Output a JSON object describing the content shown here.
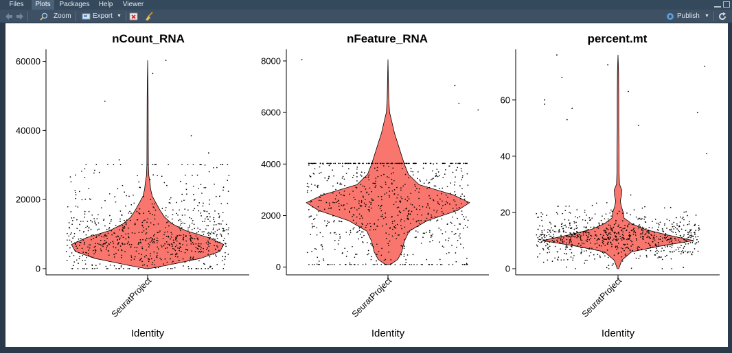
{
  "tabs": [
    {
      "label": "Files",
      "active": false
    },
    {
      "label": "Plots",
      "active": true
    },
    {
      "label": "Packages",
      "active": false
    },
    {
      "label": "Help",
      "active": false
    },
    {
      "label": "Viewer",
      "active": false
    }
  ],
  "toolbar": {
    "zoom_label": "Zoom",
    "export_label": "Export",
    "publish_label": "Publish",
    "icons": [
      "back-arrow-icon",
      "forward-arrow-icon",
      "magnifier-icon",
      "export-icon",
      "remove-plot-icon",
      "broom-icon",
      "publish-icon",
      "refresh-icon"
    ]
  },
  "colors": {
    "violin_fill": "#F8766D",
    "accent": "#4a6178"
  },
  "chart_data": [
    {
      "type": "violin",
      "title": "nCount_RNA",
      "xlabel": "Identity",
      "categories": [
        "SeuratProject"
      ],
      "ylim": [
        -1800,
        63500
      ],
      "yticks": [
        0,
        20000,
        40000,
        60000
      ],
      "tick_labels": [
        "0",
        "20000",
        "40000",
        "60000"
      ],
      "max": 60300,
      "density": [
        [
          0,
          0.02
        ],
        [
          1000,
          0.26
        ],
        [
          3000,
          0.7
        ],
        [
          5000,
          0.95
        ],
        [
          7000,
          1.0
        ],
        [
          9000,
          0.8
        ],
        [
          11000,
          0.5
        ],
        [
          13000,
          0.32
        ],
        [
          15000,
          0.22
        ],
        [
          17000,
          0.16
        ],
        [
          19000,
          0.11
        ],
        [
          21000,
          0.06
        ],
        [
          23000,
          0.04
        ],
        [
          25000,
          0.03
        ],
        [
          27000,
          0.015
        ],
        [
          30000,
          0.01
        ],
        [
          40000,
          0.008
        ],
        [
          50000,
          0.006
        ],
        [
          60300,
          0
        ]
      ],
      "points": {
        "count": 800,
        "mode": 7000,
        "spread": 4500,
        "tail": 14000,
        "outliers": [
          [
            -0.42,
            48500
          ],
          [
            -0.28,
            31500
          ],
          [
            0.43,
            38500
          ],
          [
            0.6,
            33500
          ],
          [
            0.8,
            27000
          ],
          [
            0.18,
            60300
          ],
          [
            0.05,
            56500
          ]
        ]
      }
    },
    {
      "type": "violin",
      "title": "nFeature_RNA",
      "xlabel": "Identity",
      "categories": [
        "SeuratProject"
      ],
      "ylim": [
        -300,
        8450
      ],
      "yticks": [
        0,
        2000,
        4000,
        6000,
        8000
      ],
      "tick_labels": [
        "0",
        "2000",
        "4000",
        "6000",
        "8000"
      ],
      "max": 8050,
      "density": [
        [
          100,
          0.03
        ],
        [
          300,
          0.12
        ],
        [
          600,
          0.17
        ],
        [
          1000,
          0.2
        ],
        [
          1400,
          0.26
        ],
        [
          1800,
          0.48
        ],
        [
          2200,
          0.85
        ],
        [
          2500,
          1.0
        ],
        [
          2800,
          0.8
        ],
        [
          3200,
          0.38
        ],
        [
          3600,
          0.25
        ],
        [
          4000,
          0.2
        ],
        [
          4400,
          0.16
        ],
        [
          4800,
          0.12
        ],
        [
          5200,
          0.08
        ],
        [
          5600,
          0.05
        ],
        [
          6000,
          0.02
        ],
        [
          6500,
          0.01
        ],
        [
          7000,
          0.007
        ],
        [
          8050,
          0
        ]
      ],
      "points": {
        "count": 800,
        "mode": 2500,
        "spread": 1600,
        "tail": 0,
        "outliers": [
          [
            -0.85,
            8050
          ],
          [
            0.66,
            7050
          ],
          [
            0.7,
            6350
          ],
          [
            0.89,
            6100
          ]
        ]
      }
    },
    {
      "type": "violin",
      "title": "percent.mt",
      "xlabel": "Identity",
      "categories": [
        "SeuratProject"
      ],
      "ylim": [
        -2.2,
        78
      ],
      "yticks": [
        0,
        20,
        40,
        60
      ],
      "tick_labels": [
        "0",
        "20",
        "40",
        "60"
      ],
      "max": 76,
      "density": [
        [
          0,
          0.01
        ],
        [
          3,
          0.05
        ],
        [
          6,
          0.18
        ],
        [
          8,
          0.55
        ],
        [
          10,
          1.0
        ],
        [
          12,
          0.65
        ],
        [
          14,
          0.35
        ],
        [
          16,
          0.18
        ],
        [
          18,
          0.08
        ],
        [
          20,
          0.07
        ],
        [
          22,
          0.045
        ],
        [
          24,
          0.03
        ],
        [
          26,
          0.045
        ],
        [
          28,
          0.05
        ],
        [
          30,
          0.02
        ],
        [
          34,
          0.015
        ],
        [
          40,
          0.014
        ],
        [
          50,
          0.01
        ],
        [
          60,
          0.01
        ],
        [
          70,
          0.007
        ],
        [
          76,
          0
        ]
      ],
      "points": {
        "count": 800,
        "mode": 10,
        "spread": 4,
        "tail": 6,
        "outliers": [
          [
            -0.6,
            76
          ],
          [
            -0.55,
            68
          ],
          [
            -0.72,
            60
          ],
          [
            -0.72,
            58.5
          ],
          [
            -0.45,
            57
          ],
          [
            -0.5,
            53
          ],
          [
            0.85,
            72
          ],
          [
            -0.1,
            72.5
          ],
          [
            0.78,
            55.5
          ],
          [
            0.87,
            41
          ],
          [
            0.1,
            63
          ],
          [
            0.2,
            51
          ]
        ]
      }
    }
  ]
}
